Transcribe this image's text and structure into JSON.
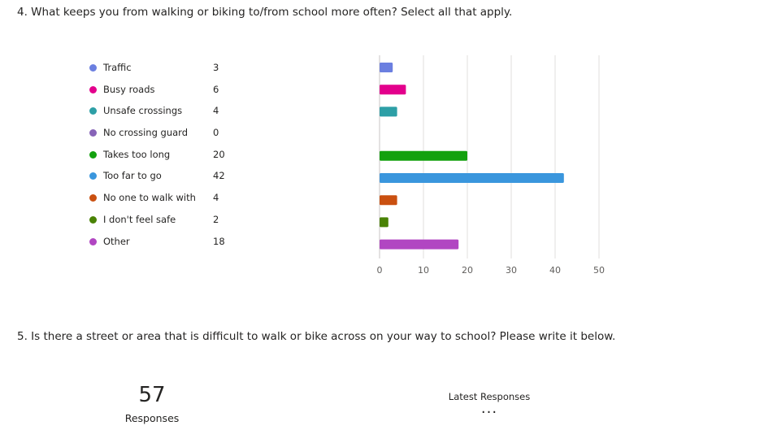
{
  "q4": {
    "title": "4. What keeps you from walking or biking to/from school more often? Select all that apply."
  },
  "chart_data": {
    "type": "bar",
    "orientation": "horizontal",
    "categories": [
      "Traffic",
      "Busy roads",
      "Unsafe crossings",
      "No crossing guard",
      "Takes too long",
      "Too far to go",
      "No one to walk with",
      "I don't feel safe",
      "Other"
    ],
    "values": [
      3,
      6,
      4,
      0,
      20,
      42,
      4,
      2,
      18
    ],
    "colors": [
      "#6b7fe0",
      "#e3008c",
      "#2d9fa6",
      "#8764b8",
      "#13a10e",
      "#3a96dd",
      "#ca5010",
      "#498205",
      "#b146c2"
    ],
    "xlim": [
      0,
      50
    ],
    "xticks": [
      0,
      10,
      20,
      30,
      40,
      50
    ],
    "grid": true
  },
  "q5": {
    "title": "5. Is there a street or area that is difficult to walk or bike across on your way to school? Please write it below.",
    "responses_count": "57",
    "responses_label": "Responses",
    "latest_label": "Latest Responses",
    "more_label": "..."
  }
}
